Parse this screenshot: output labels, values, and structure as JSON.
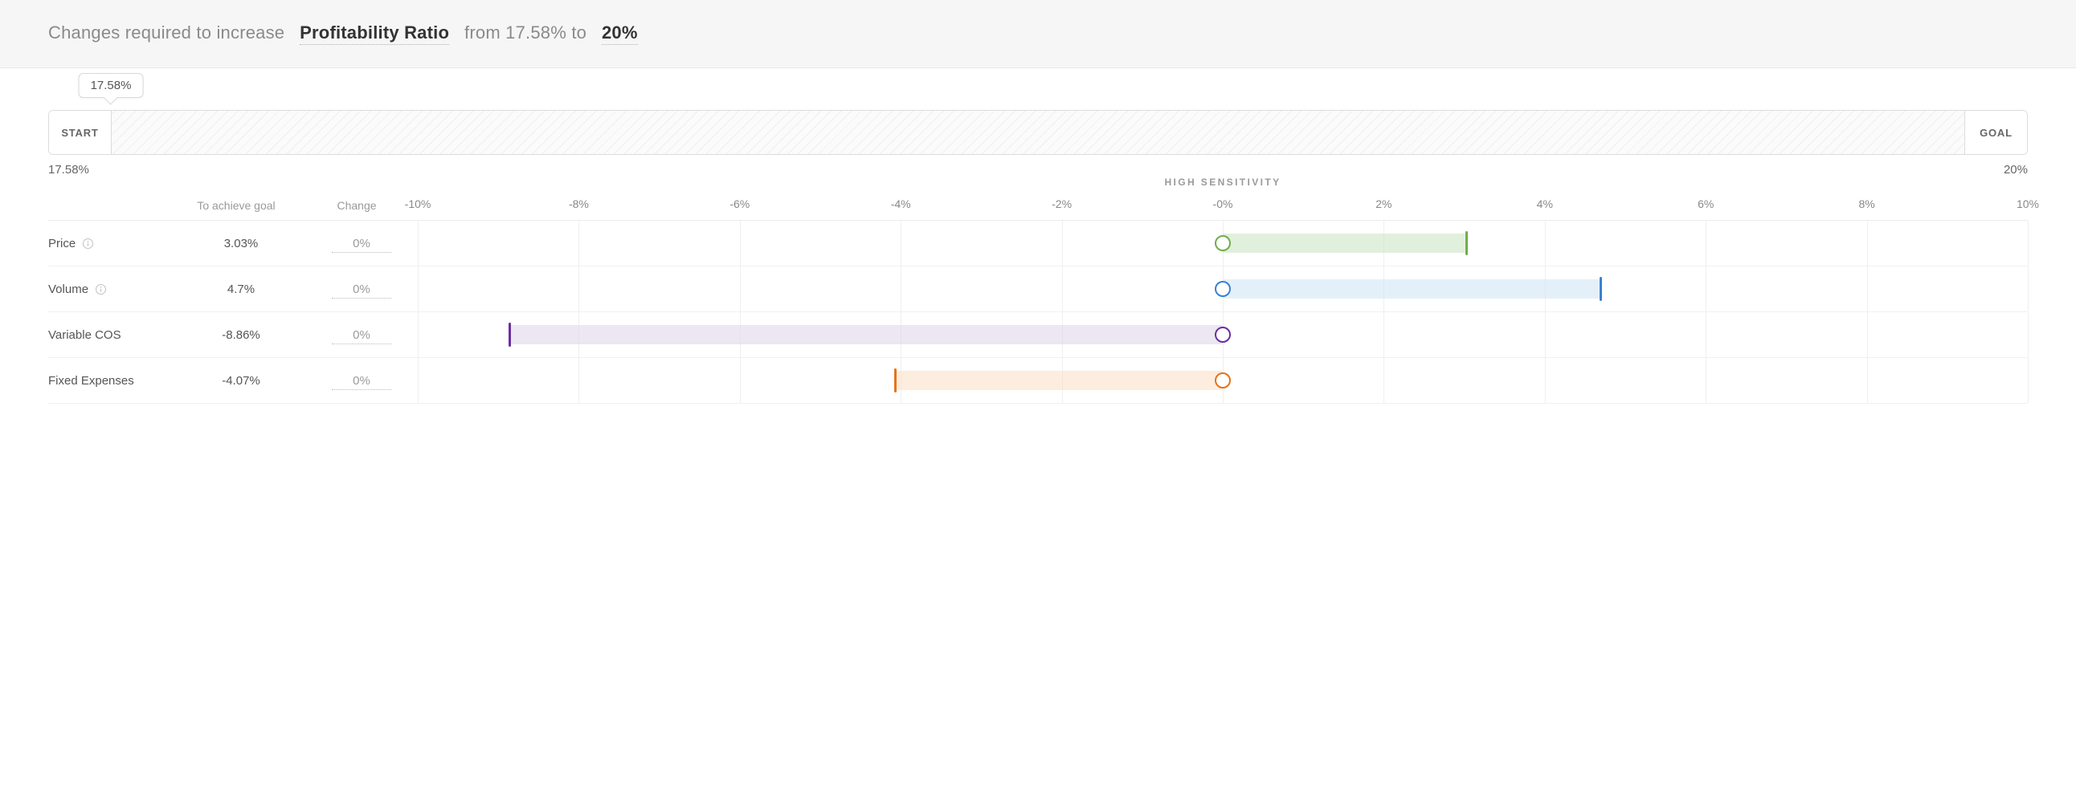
{
  "header": {
    "prefix": "Changes required to increase",
    "metric": "Profitability Ratio",
    "middle_a": "from",
    "from_value": "17.58%",
    "middle_b": "to",
    "to_value": "20%"
  },
  "progress": {
    "bubble": "17.58%",
    "start_label": "START",
    "goal_label": "GOAL",
    "scale_start": "17.58%",
    "scale_end": "20%"
  },
  "sensitivity": {
    "title": "HIGH SENSITIVITY",
    "col_achieve": "To achieve goal",
    "col_change": "Change",
    "axis_min": -10,
    "axis_max": 10,
    "tick_step": 2,
    "ticks": [
      {
        "v": -10,
        "label": "-10%"
      },
      {
        "v": -8,
        "label": "-8%"
      },
      {
        "v": -6,
        "label": "-6%"
      },
      {
        "v": -4,
        "label": "-4%"
      },
      {
        "v": -2,
        "label": "-2%"
      },
      {
        "v": 0,
        "label": "-0%"
      },
      {
        "v": 2,
        "label": "2%"
      },
      {
        "v": 4,
        "label": "4%"
      },
      {
        "v": 6,
        "label": "6%"
      },
      {
        "v": 8,
        "label": "8%"
      },
      {
        "v": 10,
        "label": "10%"
      }
    ],
    "rows": [
      {
        "name": "Price",
        "info": true,
        "achieve": "3.03%",
        "change": "0%",
        "bar_from": 0,
        "bar_to": 3.03,
        "color_fill": "#c9e4c0",
        "color_stroke": "#6fae4b"
      },
      {
        "name": "Volume",
        "info": true,
        "achieve": "4.7%",
        "change": "0%",
        "bar_from": 0,
        "bar_to": 4.7,
        "color_fill": "#cde3f4",
        "color_stroke": "#3a82d0"
      },
      {
        "name": "Variable COS",
        "info": false,
        "achieve": "-8.86%",
        "change": "0%",
        "bar_from": -8.86,
        "bar_to": 0,
        "color_fill": "#dcd3e7",
        "color_stroke": "#6b2fa0"
      },
      {
        "name": "Fixed Expenses",
        "info": false,
        "achieve": "-4.07%",
        "change": "0%",
        "bar_from": -4.07,
        "bar_to": 0,
        "color_fill": "#fadfc4",
        "color_stroke": "#e6731a"
      }
    ]
  },
  "style": {
    "header_bg": "#f6f6f6",
    "gridline_color": "#efefef",
    "text_muted": "#9a9a9a",
    "text_body": "#555555"
  }
}
